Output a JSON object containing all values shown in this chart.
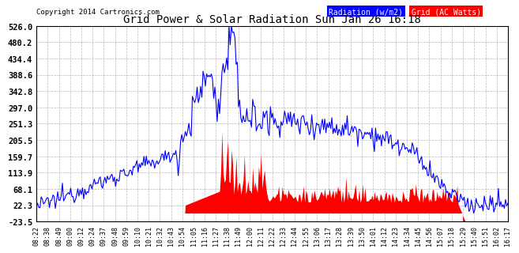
{
  "title": "Grid Power & Solar Radiation Sun Jan 26 16:18",
  "copyright": "Copyright 2014 Cartronics.com",
  "legend_radiation": "Radiation (w/m2)",
  "legend_grid": "Grid (AC Watts)",
  "radiation_color": "#0000ff",
  "grid_color": "#ff0000",
  "background_color": "#ffffff",
  "plot_bg_color": "#ffffff",
  "yticks": [
    526.0,
    480.2,
    434.4,
    388.6,
    342.8,
    297.0,
    251.3,
    205.5,
    159.7,
    113.9,
    68.1,
    22.3,
    -23.5
  ],
  "ymin": -23.5,
  "ymax": 526.0,
  "time_labels": [
    "08:22",
    "08:38",
    "08:49",
    "09:00",
    "09:12",
    "09:24",
    "09:37",
    "09:48",
    "09:59",
    "10:10",
    "10:21",
    "10:32",
    "10:43",
    "10:54",
    "11:05",
    "11:16",
    "11:27",
    "11:38",
    "11:49",
    "12:00",
    "12:11",
    "12:22",
    "12:33",
    "12:44",
    "12:55",
    "13:06",
    "13:17",
    "13:28",
    "13:39",
    "13:50",
    "14:01",
    "14:12",
    "14:23",
    "14:34",
    "14:45",
    "14:56",
    "15:07",
    "15:18",
    "15:29",
    "15:40",
    "15:51",
    "16:02",
    "16:17"
  ]
}
